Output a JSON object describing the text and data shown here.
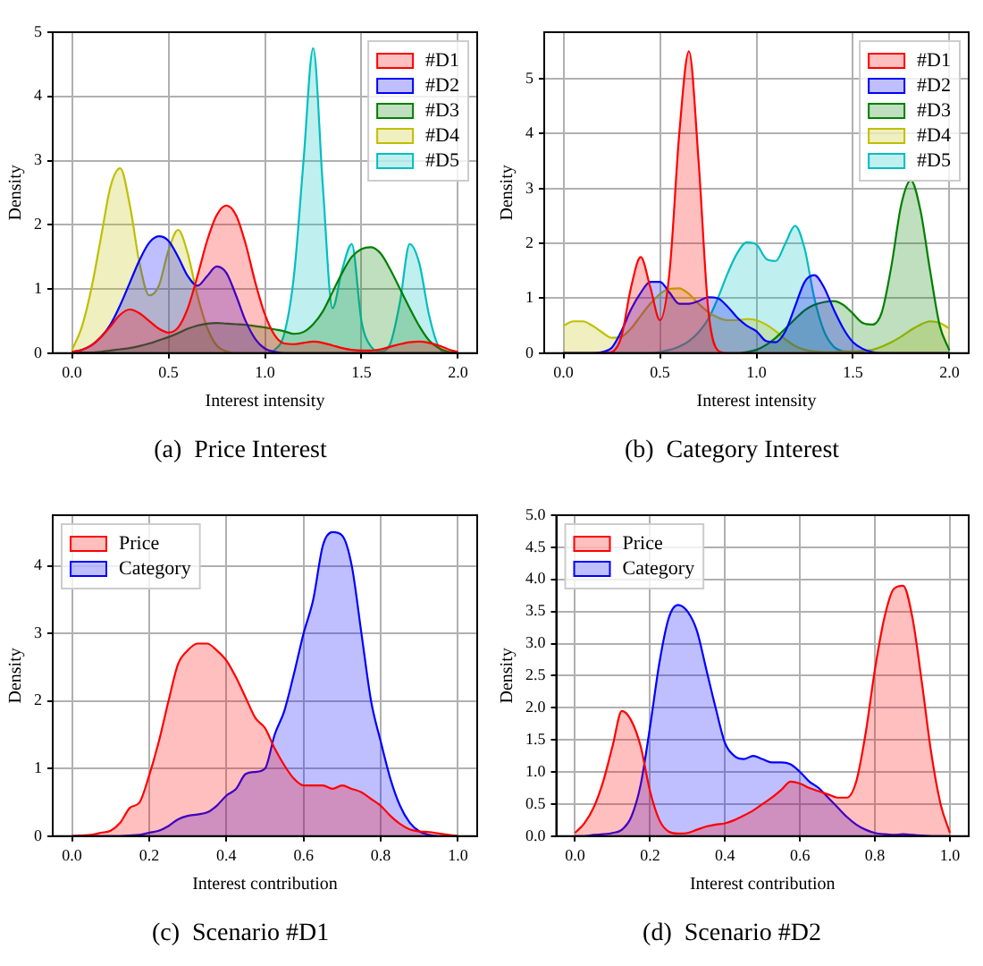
{
  "chart_data": [
    {
      "type": "area",
      "title": "(a)  Price Interest",
      "xlabel": "Interest intensity",
      "ylabel": "Density",
      "xlim": [
        -0.1,
        2.1
      ],
      "ylim": [
        0,
        5
      ],
      "xticks": [
        {
          "value": 0,
          "label": "0.0"
        },
        {
          "value": 0.5,
          "label": "0.5"
        },
        {
          "value": 1,
          "label": "1.0"
        },
        {
          "value": 1.5,
          "label": "1.5"
        },
        {
          "value": 2,
          "label": "2.0"
        }
      ],
      "yticks": [
        0,
        1,
        2,
        3,
        4,
        5
      ],
      "grid": true,
      "legend": "top right",
      "x": [
        0,
        0.05,
        0.1,
        0.15,
        0.2,
        0.25,
        0.3,
        0.35,
        0.4,
        0.45,
        0.5,
        0.55,
        0.6,
        0.65,
        0.7,
        0.75,
        0.8,
        0.85,
        0.9,
        0.95,
        1,
        1.05,
        1.1,
        1.15,
        1.2,
        1.25,
        1.3,
        1.35,
        1.4,
        1.45,
        1.5,
        1.55,
        1.6,
        1.65,
        1.7,
        1.75,
        1.8,
        1.85,
        1.9,
        1.95,
        2
      ],
      "series": [
        {
          "name": "#D1",
          "color": "#ff0000",
          "values": [
            0.02,
            0.05,
            0.12,
            0.25,
            0.42,
            0.6,
            0.68,
            0.62,
            0.5,
            0.38,
            0.32,
            0.4,
            0.7,
            1.2,
            1.75,
            2.15,
            2.3,
            2.15,
            1.7,
            1.1,
            0.6,
            0.28,
            0.15,
            0.14,
            0.16,
            0.18,
            0.16,
            0.12,
            0.08,
            0.05,
            0.04,
            0.04,
            0.06,
            0.1,
            0.14,
            0.17,
            0.18,
            0.16,
            0.12,
            0.06,
            0.02
          ]
        },
        {
          "name": "#D2",
          "color": "#0000ff",
          "values": [
            0.02,
            0.05,
            0.12,
            0.25,
            0.45,
            0.75,
            1.1,
            1.45,
            1.72,
            1.82,
            1.75,
            1.5,
            1.2,
            1.05,
            1.2,
            1.35,
            1.25,
            0.9,
            0.5,
            0.22,
            0.07,
            0.02,
            0,
            0,
            0,
            0,
            0,
            0,
            0,
            0,
            0,
            0,
            0,
            0,
            0,
            0,
            0,
            0,
            0,
            0,
            0
          ]
        },
        {
          "name": "#D3",
          "color": "#008000",
          "values": [
            0,
            0.01,
            0.01,
            0.02,
            0.04,
            0.06,
            0.08,
            0.11,
            0.15,
            0.2,
            0.25,
            0.31,
            0.38,
            0.43,
            0.46,
            0.47,
            0.46,
            0.45,
            0.44,
            0.42,
            0.4,
            0.37,
            0.34,
            0.3,
            0.33,
            0.45,
            0.65,
            0.95,
            1.25,
            1.5,
            1.62,
            1.65,
            1.55,
            1.3,
            1,
            0.7,
            0.42,
            0.2,
            0.08,
            0.02,
            0
          ]
        },
        {
          "name": "#D4",
          "color": "#bfbf00",
          "values": [
            0.05,
            0.4,
            1,
            1.8,
            2.6,
            2.88,
            2.3,
            1.4,
            0.9,
            1.05,
            1.6,
            1.92,
            1.55,
            0.9,
            0.4,
            0.12,
            0.03,
            0,
            0,
            0,
            0,
            0,
            0,
            0,
            0,
            0,
            0,
            0,
            0,
            0,
            0,
            0,
            0,
            0,
            0,
            0,
            0,
            0,
            0,
            0,
            0
          ]
        },
        {
          "name": "#D5",
          "color": "#00bfbf",
          "values": [
            0,
            0,
            0,
            0,
            0,
            0,
            0,
            0,
            0,
            0,
            0,
            0,
            0,
            0,
            0,
            0,
            0,
            0,
            0,
            0,
            0,
            0.05,
            0.3,
            1.2,
            3,
            4.75,
            2.6,
            0.7,
            1.3,
            1.7,
            0.5,
            0.1,
            0.03,
            0.15,
            0.8,
            1.7,
            1.4,
            0.6,
            0.1,
            0,
            0
          ]
        }
      ]
    },
    {
      "type": "area",
      "title": "(b)  Category Interest",
      "xlabel": "Interest intensity",
      "ylabel": "Density",
      "xlim": [
        -0.1,
        2.1
      ],
      "ylim": [
        0,
        5.85
      ],
      "xticks": [
        {
          "value": 0,
          "label": "0.0"
        },
        {
          "value": 0.5,
          "label": "0.5"
        },
        {
          "value": 1,
          "label": "1.0"
        },
        {
          "value": 1.5,
          "label": "1.5"
        },
        {
          "value": 2,
          "label": "2.0"
        }
      ],
      "yticks": [
        0,
        1,
        2,
        3,
        4,
        5
      ],
      "grid": true,
      "legend": "top right",
      "x": [
        0,
        0.05,
        0.1,
        0.15,
        0.2,
        0.25,
        0.3,
        0.35,
        0.4,
        0.45,
        0.5,
        0.55,
        0.6,
        0.65,
        0.7,
        0.75,
        0.8,
        0.85,
        0.9,
        0.95,
        1,
        1.05,
        1.1,
        1.15,
        1.2,
        1.25,
        1.3,
        1.35,
        1.4,
        1.45,
        1.5,
        1.55,
        1.6,
        1.65,
        1.7,
        1.75,
        1.8,
        1.85,
        1.9,
        1.95,
        2
      ],
      "series": [
        {
          "name": "#D1",
          "color": "#ff0000",
          "values": [
            0,
            0,
            0,
            0,
            0,
            0.02,
            0.3,
            1.2,
            1.75,
            1.2,
            0.6,
            1.5,
            4,
            5.5,
            3.5,
            0.8,
            0.05,
            0,
            0,
            0,
            0,
            0,
            0,
            0,
            0,
            0,
            0,
            0,
            0,
            0,
            0,
            0,
            0,
            0,
            0,
            0,
            0,
            0,
            0,
            0,
            0
          ]
        },
        {
          "name": "#D2",
          "color": "#0000ff",
          "values": [
            0,
            0,
            0,
            0,
            0.02,
            0.1,
            0.4,
            0.8,
            1.1,
            1.3,
            1.3,
            1.1,
            0.9,
            0.9,
            0.95,
            1.02,
            1,
            0.85,
            0.65,
            0.5,
            0.4,
            0.22,
            0.2,
            0.4,
            0.85,
            1.3,
            1.42,
            1.2,
            0.8,
            0.45,
            0.2,
            0.08,
            0.02,
            0,
            0,
            0,
            0,
            0,
            0,
            0,
            0
          ]
        },
        {
          "name": "#D3",
          "color": "#008000",
          "values": [
            0,
            0,
            0,
            0,
            0,
            0,
            0,
            0,
            0,
            0,
            0,
            0,
            0,
            0,
            0,
            0,
            0,
            0,
            0,
            0.02,
            0.06,
            0.15,
            0.28,
            0.45,
            0.62,
            0.78,
            0.88,
            0.93,
            0.95,
            0.88,
            0.72,
            0.55,
            0.52,
            0.75,
            1.6,
            2.7,
            3.15,
            2.6,
            1.5,
            0.5,
            0.05
          ]
        },
        {
          "name": "#D4",
          "color": "#bfbf00",
          "values": [
            0.5,
            0.58,
            0.58,
            0.5,
            0.38,
            0.28,
            0.3,
            0.45,
            0.68,
            0.9,
            1.08,
            1.17,
            1.18,
            1.08,
            0.9,
            0.75,
            0.65,
            0.6,
            0.6,
            0.62,
            0.6,
            0.52,
            0.4,
            0.25,
            0.13,
            0.06,
            0.03,
            0.02,
            0.02,
            0.03,
            0.03,
            0.04,
            0.06,
            0.12,
            0.2,
            0.3,
            0.42,
            0.52,
            0.58,
            0.55,
            0.45
          ]
        },
        {
          "name": "#D5",
          "color": "#00bfbf",
          "values": [
            0,
            0,
            0,
            0,
            0,
            0,
            0,
            0,
            0,
            0,
            0.02,
            0.06,
            0.12,
            0.22,
            0.38,
            0.62,
            1,
            1.45,
            1.82,
            2.02,
            1.98,
            1.72,
            1.68,
            2,
            2.32,
            1.9,
            1,
            0.4,
            0.12,
            0.03,
            0,
            0,
            0,
            0,
            0,
            0,
            0,
            0,
            0,
            0,
            0
          ]
        }
      ]
    },
    {
      "type": "area",
      "title": "(c)  Scenario #D1",
      "xlabel": "Interest contribution",
      "ylabel": "Density",
      "xlim": [
        -0.05,
        1.05
      ],
      "ylim": [
        0,
        4.75
      ],
      "xticks": [
        {
          "value": 0,
          "label": "0.0"
        },
        {
          "value": 0.2,
          "label": "0.2"
        },
        {
          "value": 0.4,
          "label": "0.4"
        },
        {
          "value": 0.6,
          "label": "0.6"
        },
        {
          "value": 0.8,
          "label": "0.8"
        },
        {
          "value": 1,
          "label": "1.0"
        }
      ],
      "yticks": [
        0,
        1,
        2,
        3,
        4
      ],
      "grid": true,
      "legend": "top left",
      "x": [
        0,
        0.025,
        0.05,
        0.075,
        0.1,
        0.125,
        0.15,
        0.175,
        0.2,
        0.225,
        0.25,
        0.275,
        0.3,
        0.325,
        0.35,
        0.375,
        0.4,
        0.425,
        0.45,
        0.475,
        0.5,
        0.525,
        0.55,
        0.575,
        0.6,
        0.625,
        0.65,
        0.675,
        0.7,
        0.725,
        0.75,
        0.775,
        0.8,
        0.825,
        0.85,
        0.875,
        0.9,
        0.925,
        0.95,
        0.975,
        1
      ],
      "series": [
        {
          "name": "Price",
          "color": "#ff0000",
          "values": [
            0,
            0.01,
            0.02,
            0.05,
            0.08,
            0.2,
            0.42,
            0.5,
            0.9,
            1.4,
            2,
            2.55,
            2.75,
            2.85,
            2.85,
            2.75,
            2.6,
            2.35,
            2.05,
            1.75,
            1.6,
            1.3,
            1.05,
            0.85,
            0.75,
            0.75,
            0.75,
            0.7,
            0.75,
            0.7,
            0.65,
            0.55,
            0.45,
            0.3,
            0.18,
            0.1,
            0.07,
            0.06,
            0.04,
            0.02,
            0
          ]
        },
        {
          "name": "Category",
          "color": "#0000ff",
          "values": [
            0,
            0,
            0,
            0,
            0,
            0,
            0.01,
            0.02,
            0.05,
            0.08,
            0.15,
            0.25,
            0.3,
            0.32,
            0.35,
            0.45,
            0.6,
            0.7,
            0.92,
            0.95,
            1,
            1.5,
            1.85,
            2.4,
            3,
            3.5,
            4.3,
            4.5,
            4.45,
            4,
            3,
            2,
            1.4,
            0.85,
            0.45,
            0.2,
            0.07,
            0.02,
            0,
            0,
            0
          ]
        }
      ]
    },
    {
      "type": "area",
      "title": "(d)  Scenario #D2",
      "xlabel": "Interest contribution",
      "ylabel": "Density",
      "xlim": [
        -0.05,
        1.05
      ],
      "ylim": [
        0,
        5
      ],
      "xticks": [
        {
          "value": 0,
          "label": "0.0"
        },
        {
          "value": 0.2,
          "label": "0.2"
        },
        {
          "value": 0.4,
          "label": "0.4"
        },
        {
          "value": 0.6,
          "label": "0.6"
        },
        {
          "value": 0.8,
          "label": "0.8"
        },
        {
          "value": 1,
          "label": "1.0"
        }
      ],
      "yticks": [
        {
          "value": 0,
          "label": "0.0"
        },
        {
          "value": 0.5,
          "label": "0.5"
        },
        {
          "value": 1,
          "label": "1.0"
        },
        {
          "value": 1.5,
          "label": "1.5"
        },
        {
          "value": 2,
          "label": "2.0"
        },
        {
          "value": 2.5,
          "label": "2.5"
        },
        {
          "value": 3,
          "label": "3.0"
        },
        {
          "value": 3.5,
          "label": "3.5"
        },
        {
          "value": 4,
          "label": "4.0"
        },
        {
          "value": 4.5,
          "label": "4.5"
        },
        {
          "value": 5,
          "label": "5.0"
        }
      ],
      "grid": true,
      "legend": "top left",
      "x": [
        0,
        0.025,
        0.05,
        0.075,
        0.1,
        0.125,
        0.15,
        0.175,
        0.2,
        0.225,
        0.25,
        0.275,
        0.3,
        0.325,
        0.35,
        0.375,
        0.4,
        0.425,
        0.45,
        0.475,
        0.5,
        0.525,
        0.55,
        0.575,
        0.6,
        0.625,
        0.65,
        0.675,
        0.7,
        0.725,
        0.75,
        0.775,
        0.8,
        0.825,
        0.85,
        0.875,
        0.9,
        0.925,
        0.95,
        0.975,
        1
      ],
      "series": [
        {
          "name": "Price",
          "color": "#ff0000",
          "values": [
            0.05,
            0.2,
            0.45,
            0.85,
            1.4,
            1.95,
            1.8,
            1.4,
            0.7,
            0.25,
            0.07,
            0.04,
            0.05,
            0.1,
            0.15,
            0.18,
            0.2,
            0.25,
            0.32,
            0.4,
            0.5,
            0.6,
            0.72,
            0.85,
            0.82,
            0.75,
            0.7,
            0.65,
            0.6,
            0.6,
            0.85,
            1.6,
            2.6,
            3.4,
            3.85,
            3.9,
            3.4,
            2.4,
            1.3,
            0.5,
            0.05
          ]
        },
        {
          "name": "Category",
          "color": "#0000ff",
          "values": [
            0,
            0,
            0.02,
            0.03,
            0.05,
            0.1,
            0.3,
            0.8,
            1.7,
            2.7,
            3.4,
            3.6,
            3.5,
            3.2,
            2.6,
            2,
            1.45,
            1.25,
            1.2,
            1.25,
            1.2,
            1.15,
            1.15,
            1.12,
            1,
            0.85,
            0.75,
            0.6,
            0.45,
            0.3,
            0.18,
            0.1,
            0.05,
            0.03,
            0.02,
            0.03,
            0.02,
            0.01,
            0,
            0,
            0
          ]
        }
      ]
    }
  ]
}
